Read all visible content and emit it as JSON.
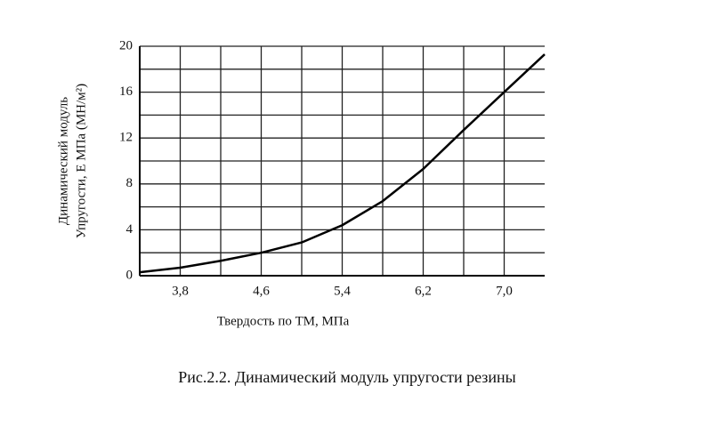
{
  "chart_data": {
    "type": "line",
    "caption": "Рис.2.2. Динамический модуль упругости резины",
    "y_label": [
      "Динамический модуль",
      "Упругости, Е МПа (МН/м²)"
    ],
    "x_label": "Твердость по ТМ, МПа",
    "x": [
      3.4,
      3.8,
      4.2,
      4.6,
      5.0,
      5.4,
      5.8,
      6.2,
      6.6,
      7.0,
      7.4
    ],
    "series": [
      {
        "color": "#000000",
        "values": [
          0.3,
          0.7,
          1.3,
          2.0,
          2.9,
          4.4,
          6.5,
          9.3,
          12.7,
          16.0,
          19.3
        ]
      }
    ],
    "xlim": [
      3.4,
      7.4
    ],
    "ylim": [
      0,
      20
    ],
    "xticks": [
      {
        "value": 3.8,
        "label": "3,8"
      },
      {
        "value": 4.6,
        "label": "4,6"
      },
      {
        "value": 5.4,
        "label": "5,4"
      },
      {
        "value": 6.2,
        "label": "6,2"
      },
      {
        "value": 7.0,
        "label": "7,0"
      }
    ],
    "yticks": [
      0,
      4,
      8,
      12,
      16,
      20
    ],
    "x_minor_grid": [
      4.2,
      5.0,
      5.8,
      6.6
    ],
    "y_minor_grid": [
      2,
      6,
      10,
      14,
      18
    ],
    "grid": true
  }
}
